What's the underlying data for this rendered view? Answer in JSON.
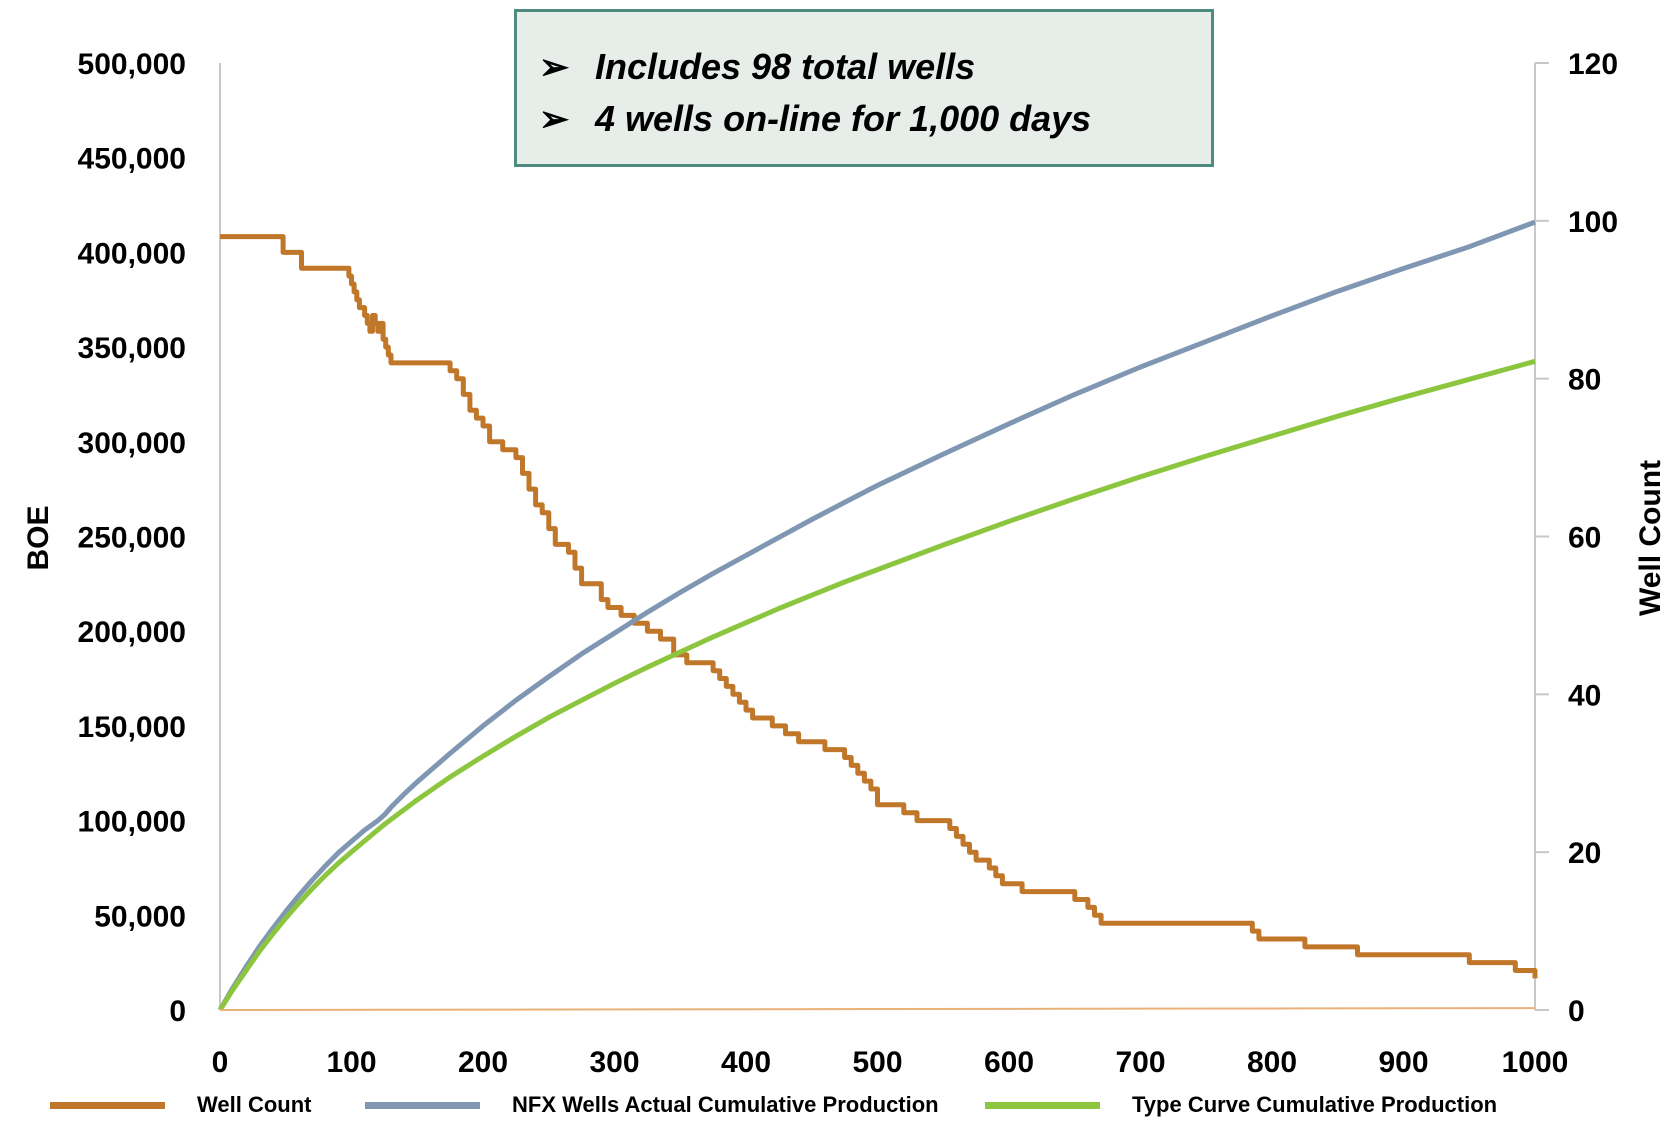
{
  "chart_data": {
    "type": "line",
    "title": "",
    "xlabel": "",
    "ylabel": "BOE",
    "y2label": "Well Count",
    "xlim": [
      0,
      1000
    ],
    "ylim": [
      0,
      500000
    ],
    "y2lim": [
      0,
      120
    ],
    "x_ticks": [
      "0",
      "100",
      "200",
      "300",
      "400",
      "500",
      "600",
      "700",
      "800",
      "900",
      "1000"
    ],
    "y_ticks": [
      "0",
      "50,000",
      "100,000",
      "150,000",
      "200,000",
      "250,000",
      "300,000",
      "350,000",
      "400,000",
      "450,000",
      "500,000"
    ],
    "y2_ticks": [
      "0",
      "20",
      "40",
      "60",
      "80",
      "100",
      "120"
    ],
    "grid": false,
    "legend_position": "bottom",
    "series": [
      {
        "name": "Well Count",
        "axis": "right",
        "color": "#c0772a",
        "step": true,
        "x": [
          0,
          48,
          52,
          62,
          64,
          66,
          95,
          98,
          100,
          102,
          104,
          106,
          110,
          112,
          114,
          116,
          118,
          120,
          122,
          124,
          126,
          128,
          130,
          170,
          175,
          180,
          185,
          190,
          195,
          200,
          205,
          210,
          215,
          220,
          225,
          230,
          235,
          240,
          245,
          250,
          255,
          260,
          265,
          270,
          275,
          280,
          285,
          290,
          295,
          300,
          305,
          310,
          315,
          320,
          325,
          330,
          335,
          340,
          345,
          350,
          355,
          360,
          365,
          370,
          375,
          380,
          385,
          390,
          395,
          400,
          405,
          410,
          420,
          430,
          440,
          450,
          460,
          470,
          475,
          480,
          485,
          490,
          495,
          500,
          510,
          520,
          530,
          540,
          550,
          555,
          560,
          565,
          570,
          575,
          580,
          585,
          590,
          595,
          600,
          610,
          620,
          630,
          640,
          650,
          655,
          660,
          665,
          670,
          780,
          785,
          790,
          820,
          825,
          830,
          865,
          870,
          875,
          945,
          950,
          975,
          980,
          985,
          990,
          1000
        ],
        "y": [
          98,
          96,
          96,
          94,
          94,
          94,
          94,
          93,
          92,
          91,
          90,
          89,
          88,
          87,
          86,
          88,
          87,
          86,
          87,
          85,
          84,
          83,
          82,
          82,
          81,
          80,
          78,
          76,
          75,
          74,
          72,
          72,
          71,
          71,
          70,
          68,
          66,
          64,
          63,
          61,
          59,
          59,
          58,
          56,
          54,
          54,
          54,
          52,
          51,
          51,
          50,
          50,
          49,
          49,
          48,
          48,
          47,
          47,
          45,
          45,
          44,
          44,
          44,
          44,
          43,
          42,
          41,
          40,
          39,
          38,
          37,
          37,
          36,
          35,
          34,
          34,
          33,
          33,
          32,
          31,
          30,
          29,
          28,
          26,
          26,
          25,
          24,
          24,
          24,
          23,
          22,
          21,
          20,
          19,
          19,
          18,
          17,
          16,
          16,
          15,
          15,
          15,
          15,
          14,
          14,
          13,
          12,
          11,
          11,
          10,
          9,
          9,
          8,
          8,
          7,
          7,
          7,
          7,
          6,
          6,
          6,
          5,
          5,
          4
        ]
      },
      {
        "name": "NFX Wells Actual Cumulative Production",
        "axis": "left",
        "color": "#7f97b2",
        "x": [
          0,
          10,
          20,
          30,
          40,
          50,
          60,
          70,
          80,
          90,
          100,
          110,
          120,
          125,
          130,
          140,
          150,
          175,
          200,
          225,
          250,
          275,
          300,
          325,
          350,
          375,
          400,
          425,
          450,
          475,
          500,
          550,
          600,
          650,
          700,
          750,
          800,
          850,
          900,
          950,
          1000
        ],
        "y": [
          0,
          12000,
          23000,
          33500,
          43000,
          52000,
          60500,
          68500,
          76000,
          83000,
          89000,
          95000,
          100000,
          103000,
          107000,
          114000,
          120500,
          135500,
          150000,
          163500,
          176000,
          188000,
          199000,
          210000,
          220500,
          230500,
          240000,
          249500,
          259000,
          268000,
          277000,
          293500,
          309500,
          325000,
          339500,
          353000,
          366500,
          379500,
          391500,
          403000,
          416000
        ]
      },
      {
        "name": "Type Curve Cumulative Production",
        "axis": "left",
        "color": "#8cc63f",
        "x": [
          0,
          10,
          20,
          30,
          40,
          50,
          60,
          70,
          80,
          90,
          100,
          125,
          150,
          175,
          200,
          225,
          250,
          275,
          300,
          325,
          350,
          375,
          400,
          425,
          450,
          475,
          500,
          550,
          600,
          650,
          700,
          750,
          800,
          850,
          900,
          950,
          1000
        ],
        "y": [
          0,
          11000,
          21000,
          31000,
          40000,
          48500,
          56500,
          64000,
          71000,
          77500,
          83500,
          98000,
          111000,
          123000,
          134000,
          144500,
          154500,
          163500,
          172500,
          181000,
          189000,
          197000,
          204500,
          212000,
          219000,
          226000,
          232500,
          245500,
          258000,
          270000,
          281500,
          292500,
          303000,
          313500,
          323500,
          333000,
          342500
        ]
      },
      {
        "name": "",
        "axis": "left",
        "color": "#e8b27a",
        "x": [
          0,
          1000
        ],
        "y": [
          0,
          1000
        ]
      }
    ]
  },
  "callout": {
    "bullet": "➢",
    "line1": "Includes 98 total wells",
    "line2": "4 wells on-line for 1,000 days"
  },
  "legend": {
    "items": [
      {
        "label": "Well Count",
        "color": "#c0772a"
      },
      {
        "label": "NFX Wells Actual Cumulative Production",
        "color": "#7f97b2"
      },
      {
        "label": "Type Curve Cumulative Production",
        "color": "#8cc63f"
      }
    ]
  }
}
